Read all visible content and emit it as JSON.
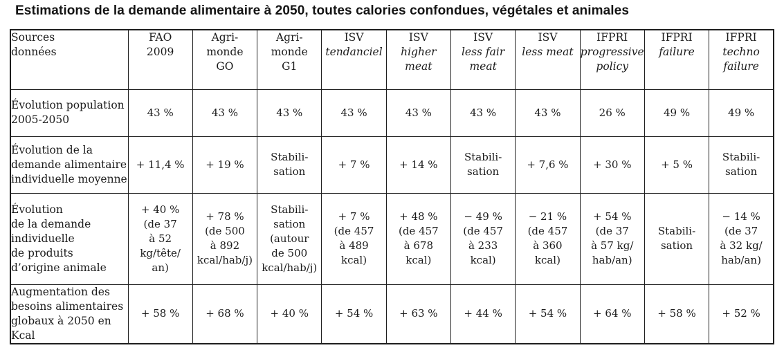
{
  "title": "Estimations de la demande alimentaire à 2050, toutes calories confondues, végétales et animales",
  "table": {
    "corner_label": "Sources\ndonnées",
    "columns": [
      {
        "name": "FAO\n2009",
        "scenario": ""
      },
      {
        "name": "Agri-\nmonde\nGO",
        "scenario": ""
      },
      {
        "name": "Agri-\nmonde\nG1",
        "scenario": ""
      },
      {
        "name": "ISV",
        "scenario": "tendanciel"
      },
      {
        "name": "ISV",
        "scenario": "higher\nmeat"
      },
      {
        "name": "ISV",
        "scenario": "less fair\nmeat"
      },
      {
        "name": "ISV",
        "scenario": "less meat"
      },
      {
        "name": "IFPRI",
        "scenario": "progressive\npolicy"
      },
      {
        "name": "IFPRI",
        "scenario": "failure"
      },
      {
        "name": "IFPRI",
        "scenario": "techno\nfailure"
      }
    ],
    "rows": [
      {
        "label": "Évolution population\n2005-2050",
        "values": [
          "43 %",
          "43 %",
          "43 %",
          "43 %",
          "43 %",
          "43 %",
          "43 %",
          "26 %",
          "49 %",
          "49 %"
        ]
      },
      {
        "label": "Évolution de la\ndemande alimentaire\nindividuelle moyenne",
        "values": [
          "+ 11,4 %",
          "+ 19 %",
          "Stabili-\nsation",
          "+ 7 %",
          "+ 14 %",
          "Stabili-\nsation",
          "+ 7,6 %",
          "+ 30 %",
          "+ 5 %",
          "Stabili-\nsation"
        ]
      },
      {
        "label": "Évolution\nde la demande\nindividuelle\nde produits\nd’origine animale",
        "values": [
          "+ 40 %\n(de 37\nà 52\nkg/tête/\nan)",
          "+ 78 %\n(de 500\nà 892\nkcal/hab/j)",
          "Stabili-\nsation\n(autour\nde 500\nkcal/hab/j)",
          "+ 7 %\n(de 457\nà 489\nkcal)",
          "+ 48 %\n(de 457\nà 678\nkcal)",
          "− 49 %\n(de 457\nà 233\nkcal)",
          "− 21 %\n(de 457\nà 360\nkcal)",
          "+ 54 %\n(de 37\nà 57 kg/\nhab/an)",
          "Stabili-\nsation",
          "− 14 %\n(de 37\nà 32 kg/\nhab/an)"
        ]
      },
      {
        "label": "Augmentation des\nbesoins alimentaires\nglobaux à 2050 en Kcal",
        "values": [
          "+ 58 %",
          "+ 68 %",
          "+ 40 %",
          "+ 54 %",
          "+ 63 %",
          "+ 44 %",
          "+ 54 %",
          "+ 64 %",
          "+ 58 %",
          "+ 52 %"
        ]
      }
    ]
  },
  "colors": {
    "border": "#1e1e1e",
    "text": "#1b1b1b",
    "background": "#ffffff"
  }
}
